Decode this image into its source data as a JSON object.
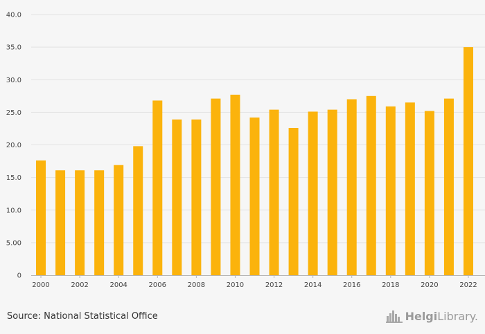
{
  "chart_data": {
    "type": "bar",
    "categories": [
      "2000",
      "2001",
      "2002",
      "2003",
      "2004",
      "2005",
      "2006",
      "2007",
      "2008",
      "2009",
      "2010",
      "2011",
      "2012",
      "2013",
      "2014",
      "2015",
      "2016",
      "2017",
      "2018",
      "2019",
      "2020",
      "2021",
      "2022"
    ],
    "values": [
      17.6,
      16.1,
      16.1,
      16.1,
      16.9,
      19.8,
      26.8,
      23.9,
      23.9,
      27.1,
      27.7,
      24.2,
      25.4,
      22.6,
      25.1,
      25.4,
      27.0,
      27.5,
      25.9,
      26.5,
      25.2,
      27.1,
      35.0
    ],
    "xtick_labels": [
      "2000",
      "2002",
      "2004",
      "2006",
      "2008",
      "2010",
      "2012",
      "2014",
      "2016",
      "2018",
      "2020",
      "2022"
    ],
    "ytick_labels": [
      "0",
      "5.00",
      "10.0",
      "15.0",
      "20.0",
      "25.0",
      "30.0",
      "35.0",
      "40.0"
    ],
    "ylim": [
      0,
      40
    ],
    "grid": true,
    "bar_color": "#fbb30c",
    "title": "",
    "xlabel": "",
    "ylabel": ""
  },
  "footer": {
    "source": "Source: National Statistical Office"
  },
  "brand": {
    "name_part1": "Helgi",
    "name_part2": "Library."
  }
}
